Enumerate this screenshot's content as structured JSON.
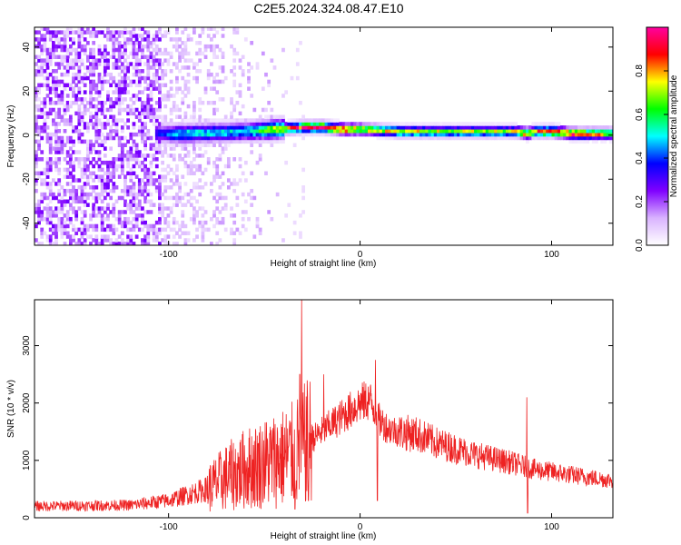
{
  "figure_title": "C2E5.2024.324.08.47.E10",
  "chart_data": [
    {
      "type": "heatmap",
      "xlabel": "Height of straight line (km)",
      "ylabel": "Frequency (Hz)",
      "xlim": [
        -170,
        132
      ],
      "ylim": [
        -50,
        49
      ],
      "x_ticks": [
        -100,
        0,
        100
      ],
      "y_ticks": [
        -40,
        -20,
        0,
        20,
        40
      ],
      "colorbar": {
        "label": "Normalized spectral amplitude",
        "range": [
          0,
          1
        ],
        "ticks": [
          0.0,
          0.2,
          0.4,
          0.6,
          0.8
        ],
        "tick_labels": [
          "0.0",
          "0.2",
          "0.4",
          "0.6",
          "0.8"
        ],
        "colors": [
          "#ffffff",
          "#d9b3ff",
          "#8000ff",
          "#0000ff",
          "#00ffff",
          "#00ff00",
          "#ffff00",
          "#ff0000",
          "#ff00a0"
        ]
      },
      "ridge": {
        "description_points_x": [
          -105,
          -95,
          -60,
          -30,
          -20,
          -10,
          0,
          20,
          40,
          60,
          80,
          87,
          90,
          100,
          110,
          132
        ],
        "center_freq_hz": [
          0,
          0,
          1,
          3,
          3,
          2,
          2,
          1,
          1,
          1,
          1,
          0,
          1,
          1,
          0,
          0
        ],
        "peak_amplitude": [
          0.35,
          0.5,
          0.5,
          0.9,
          0.95,
          0.9,
          0.75,
          0.75,
          0.7,
          0.7,
          0.7,
          0.85,
          0.8,
          0.9,
          0.9,
          0.7
        ]
      },
      "noise_region_x": [
        -170,
        -40
      ]
    },
    {
      "type": "line",
      "xlabel": "Height of straight line (km)",
      "ylabel": "SNR (10 * v/v)",
      "xlim": [
        -170,
        132
      ],
      "ylim": [
        0,
        3800
      ],
      "x_ticks": [
        -100,
        0,
        100
      ],
      "y_ticks": [
        0,
        1000,
        2000,
        3000
      ],
      "color": "#ee2222",
      "envelope_x": [
        -170,
        -120,
        -100,
        -80,
        -70,
        -60,
        -50,
        -40,
        -35,
        -30,
        -20,
        -10,
        0,
        5,
        10,
        15,
        20,
        30,
        40,
        60,
        80,
        90,
        100,
        120,
        132
      ],
      "envelope_y": [
        200,
        220,
        300,
        500,
        700,
        850,
        950,
        1050,
        1100,
        1250,
        1500,
        1750,
        2000,
        2050,
        1700,
        1550,
        1500,
        1450,
        1300,
        1100,
        950,
        850,
        800,
        700,
        650
      ],
      "spikes": [
        {
          "x": -30.5,
          "y": 3800
        },
        {
          "x": -31.5,
          "y": 2500
        },
        {
          "x": -19,
          "y": 2500
        },
        {
          "x": 8,
          "y": 2750
        },
        {
          "x": 87,
          "y": 2100
        }
      ],
      "dips": [
        {
          "x": 9,
          "y": 300
        },
        {
          "x": 87.5,
          "y": 80
        },
        {
          "x": -34,
          "y": 150
        },
        {
          "x": -27,
          "y": 300
        }
      ]
    }
  ]
}
